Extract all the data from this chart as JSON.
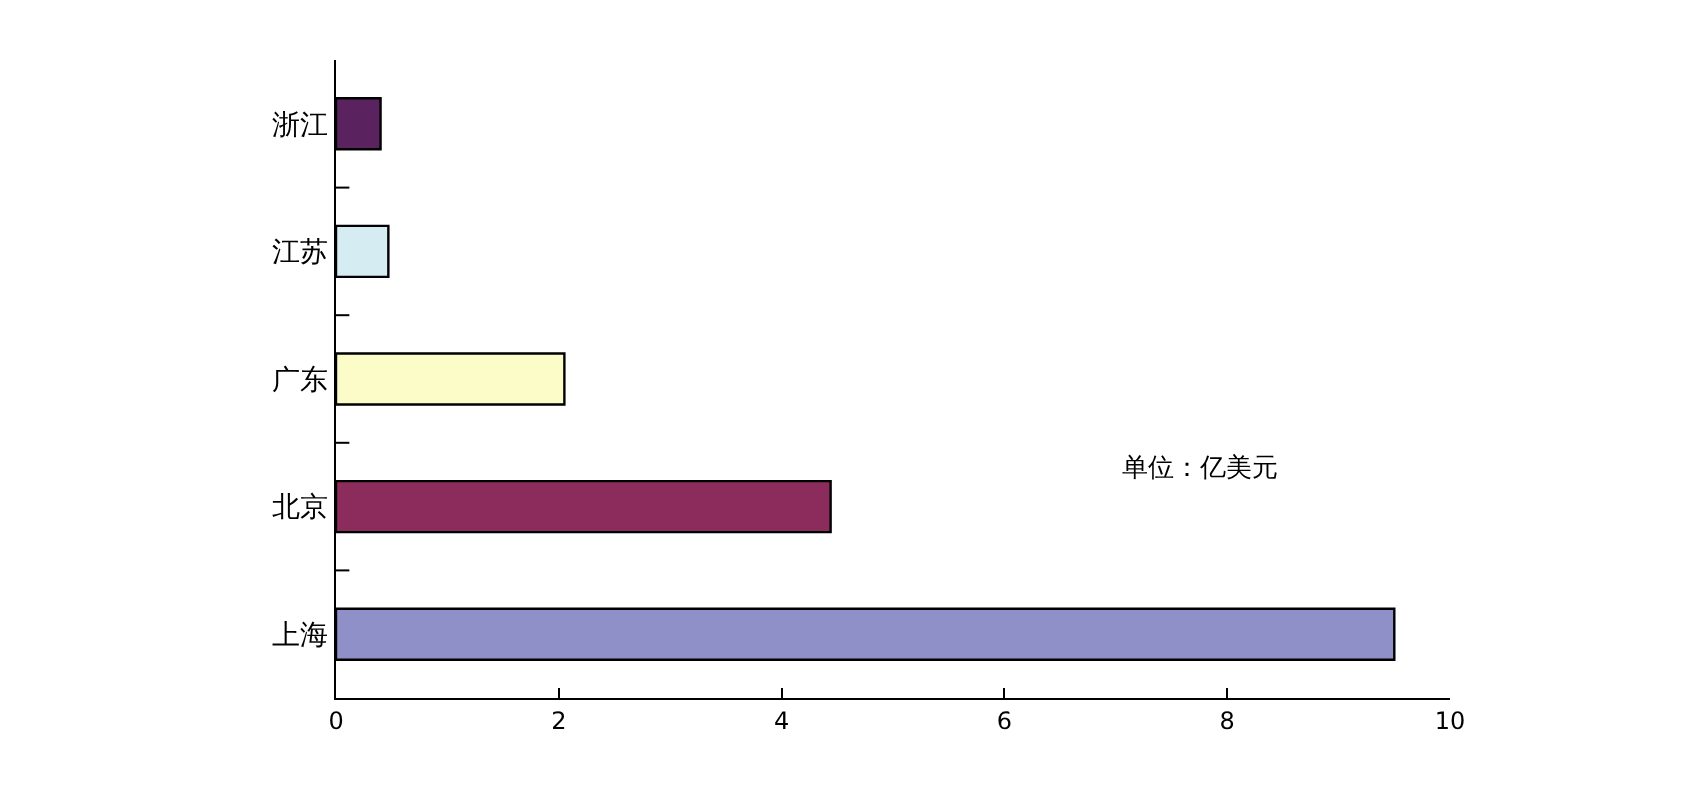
{
  "chart_data": {
    "type": "bar",
    "orientation": "horizontal",
    "categories": [
      "浙江",
      "江苏",
      "广东",
      "北京",
      "上海"
    ],
    "values": [
      0.4,
      0.47,
      2.05,
      4.44,
      9.5
    ],
    "colors": [
      "#5a2360",
      "#d4ecf2",
      "#fcfcc8",
      "#8c2c5c",
      "#9090c8"
    ],
    "xlim": [
      0,
      10
    ],
    "xticks": [
      0,
      2,
      4,
      6,
      8,
      10
    ],
    "annotations": [
      "单位：亿美元"
    ]
  }
}
